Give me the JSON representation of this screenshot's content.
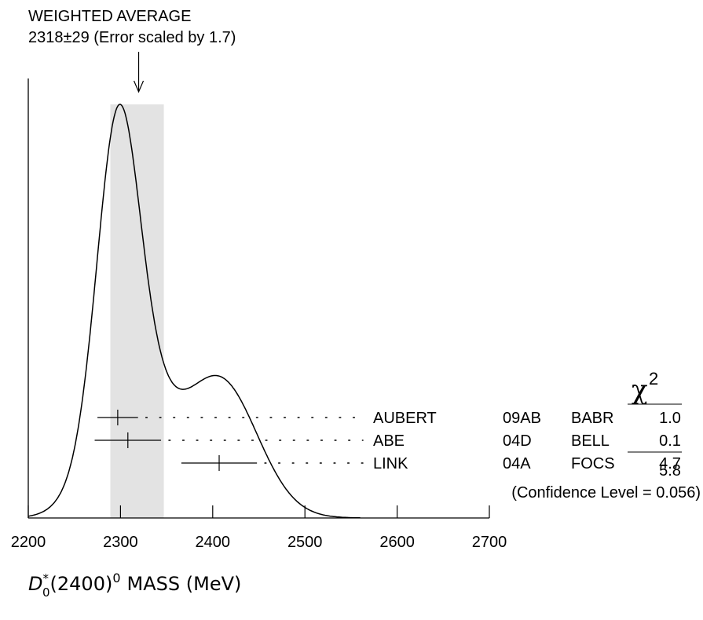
{
  "chart_data": {
    "type": "ideogram",
    "title": "WEIGHTED AVERAGE",
    "subtitle": "2318±29 (Error scaled by 1.7)",
    "xlabel": "MASS (MeV)",
    "xlabel_particle": "D",
    "xlabel_sup": "*",
    "xlabel_sub": "0",
    "xlabel_paren": "(2400)",
    "xlabel_sup2": "0",
    "xlim": [
      2200,
      2700
    ],
    "xticks": [
      "2200",
      "2300",
      "2400",
      "2500",
      "2600",
      "2700"
    ],
    "tick_values": [
      2200,
      2300,
      2400,
      2500,
      2600,
      2700
    ],
    "weighted_average": {
      "value": 2318,
      "error": 29
    },
    "measurements": [
      {
        "author": "AUBERT",
        "ref": "09AB",
        "experiment": "BABR",
        "value": 2297,
        "error": 22,
        "chi2": "1.0"
      },
      {
        "author": "ABE",
        "ref": "04D",
        "experiment": "BELL",
        "value": 2308,
        "error": 36,
        "chi2": "0.1"
      },
      {
        "author": "LINK",
        "ref": "04A",
        "experiment": "FOCS",
        "value": 2407,
        "error": 41,
        "chi2": "4.7"
      }
    ],
    "chi2_header": "χ",
    "chi2_header_sup": "2",
    "chi2_total": "5.8",
    "confidence_level": "(Confidence Level = 0.056)"
  }
}
